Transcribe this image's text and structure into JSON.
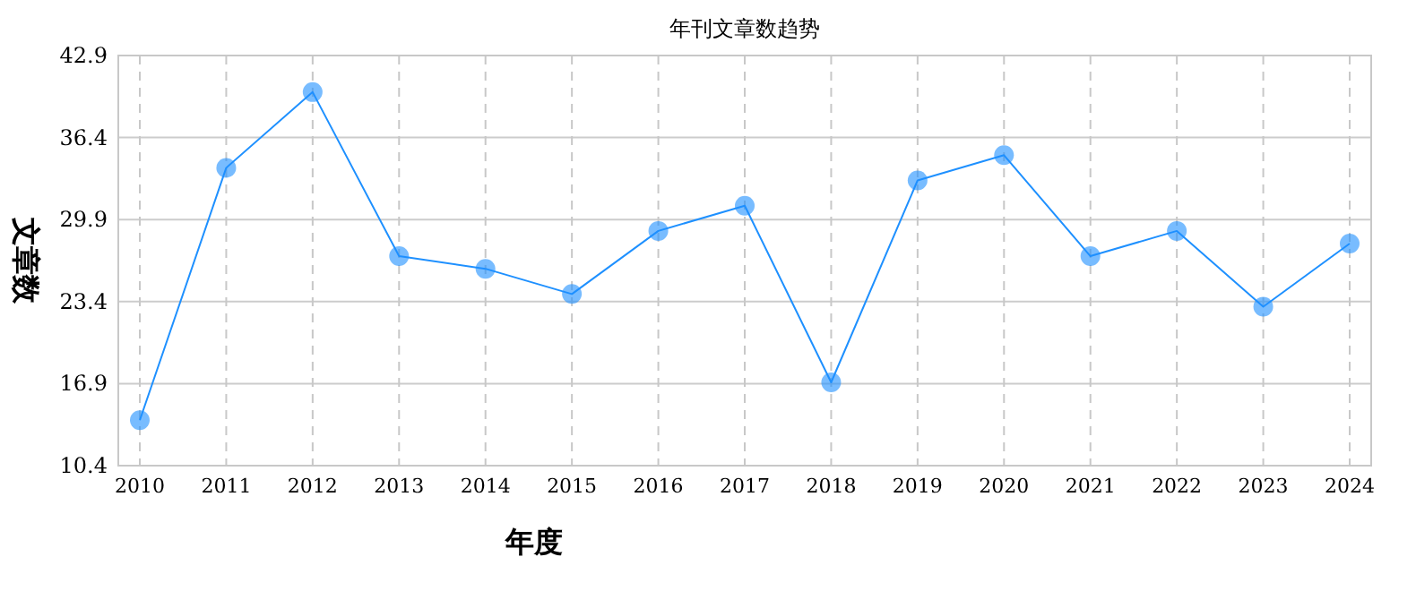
{
  "chart_data": {
    "type": "line",
    "title": "年刊文章数趋势",
    "xlabel": "年度",
    "ylabel": "文章数",
    "categories": [
      "2010",
      "2011",
      "2012",
      "2013",
      "2014",
      "2015",
      "2016",
      "2017",
      "2018",
      "2019",
      "2020",
      "2021",
      "2022",
      "2023",
      "2024"
    ],
    "series": [
      {
        "color": "#1e90ff",
        "values": [
          14,
          34,
          40,
          27,
          26,
          24,
          29,
          31,
          17,
          33,
          35,
          27,
          29,
          23,
          28
        ]
      }
    ],
    "ylim": [
      10.4,
      42.9
    ],
    "yticks": [
      10.4,
      16.9,
      23.4,
      29.9,
      36.4,
      42.9
    ],
    "grid": true,
    "marker": "circle",
    "line_style": "solid"
  }
}
